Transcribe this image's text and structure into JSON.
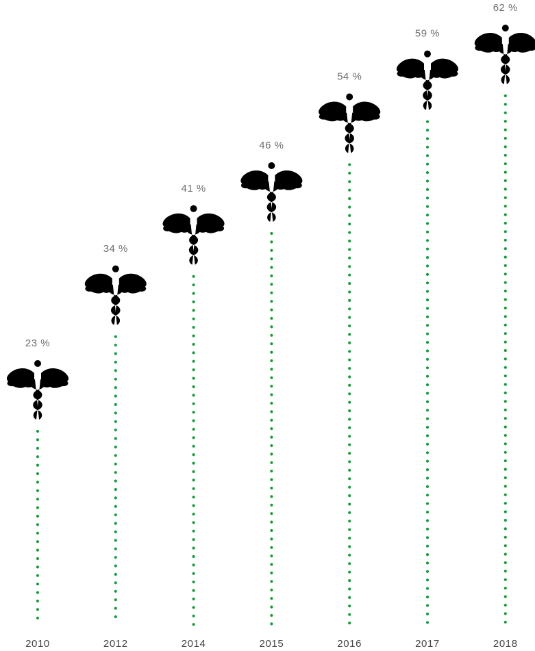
{
  "chart_data": {
    "type": "lollipop",
    "categories": [
      "2010",
      "2012",
      "2014",
      "2015",
      "2016",
      "2017",
      "2018"
    ],
    "values": [
      23,
      34,
      41,
      46,
      54,
      59,
      62
    ],
    "value_labels": [
      "23 %",
      "34 %",
      "41 %",
      "46 %",
      "54 %",
      "59 %",
      "62 %"
    ],
    "unit": "%",
    "ylim": [
      0,
      62
    ],
    "grid": false,
    "legend": "none",
    "marker_icon": "caduceus-icon",
    "line_style": "dotted"
  },
  "colors": {
    "accent": "#1a9b3c",
    "value_label": "#6e6e6e",
    "year_label": "#444444"
  }
}
